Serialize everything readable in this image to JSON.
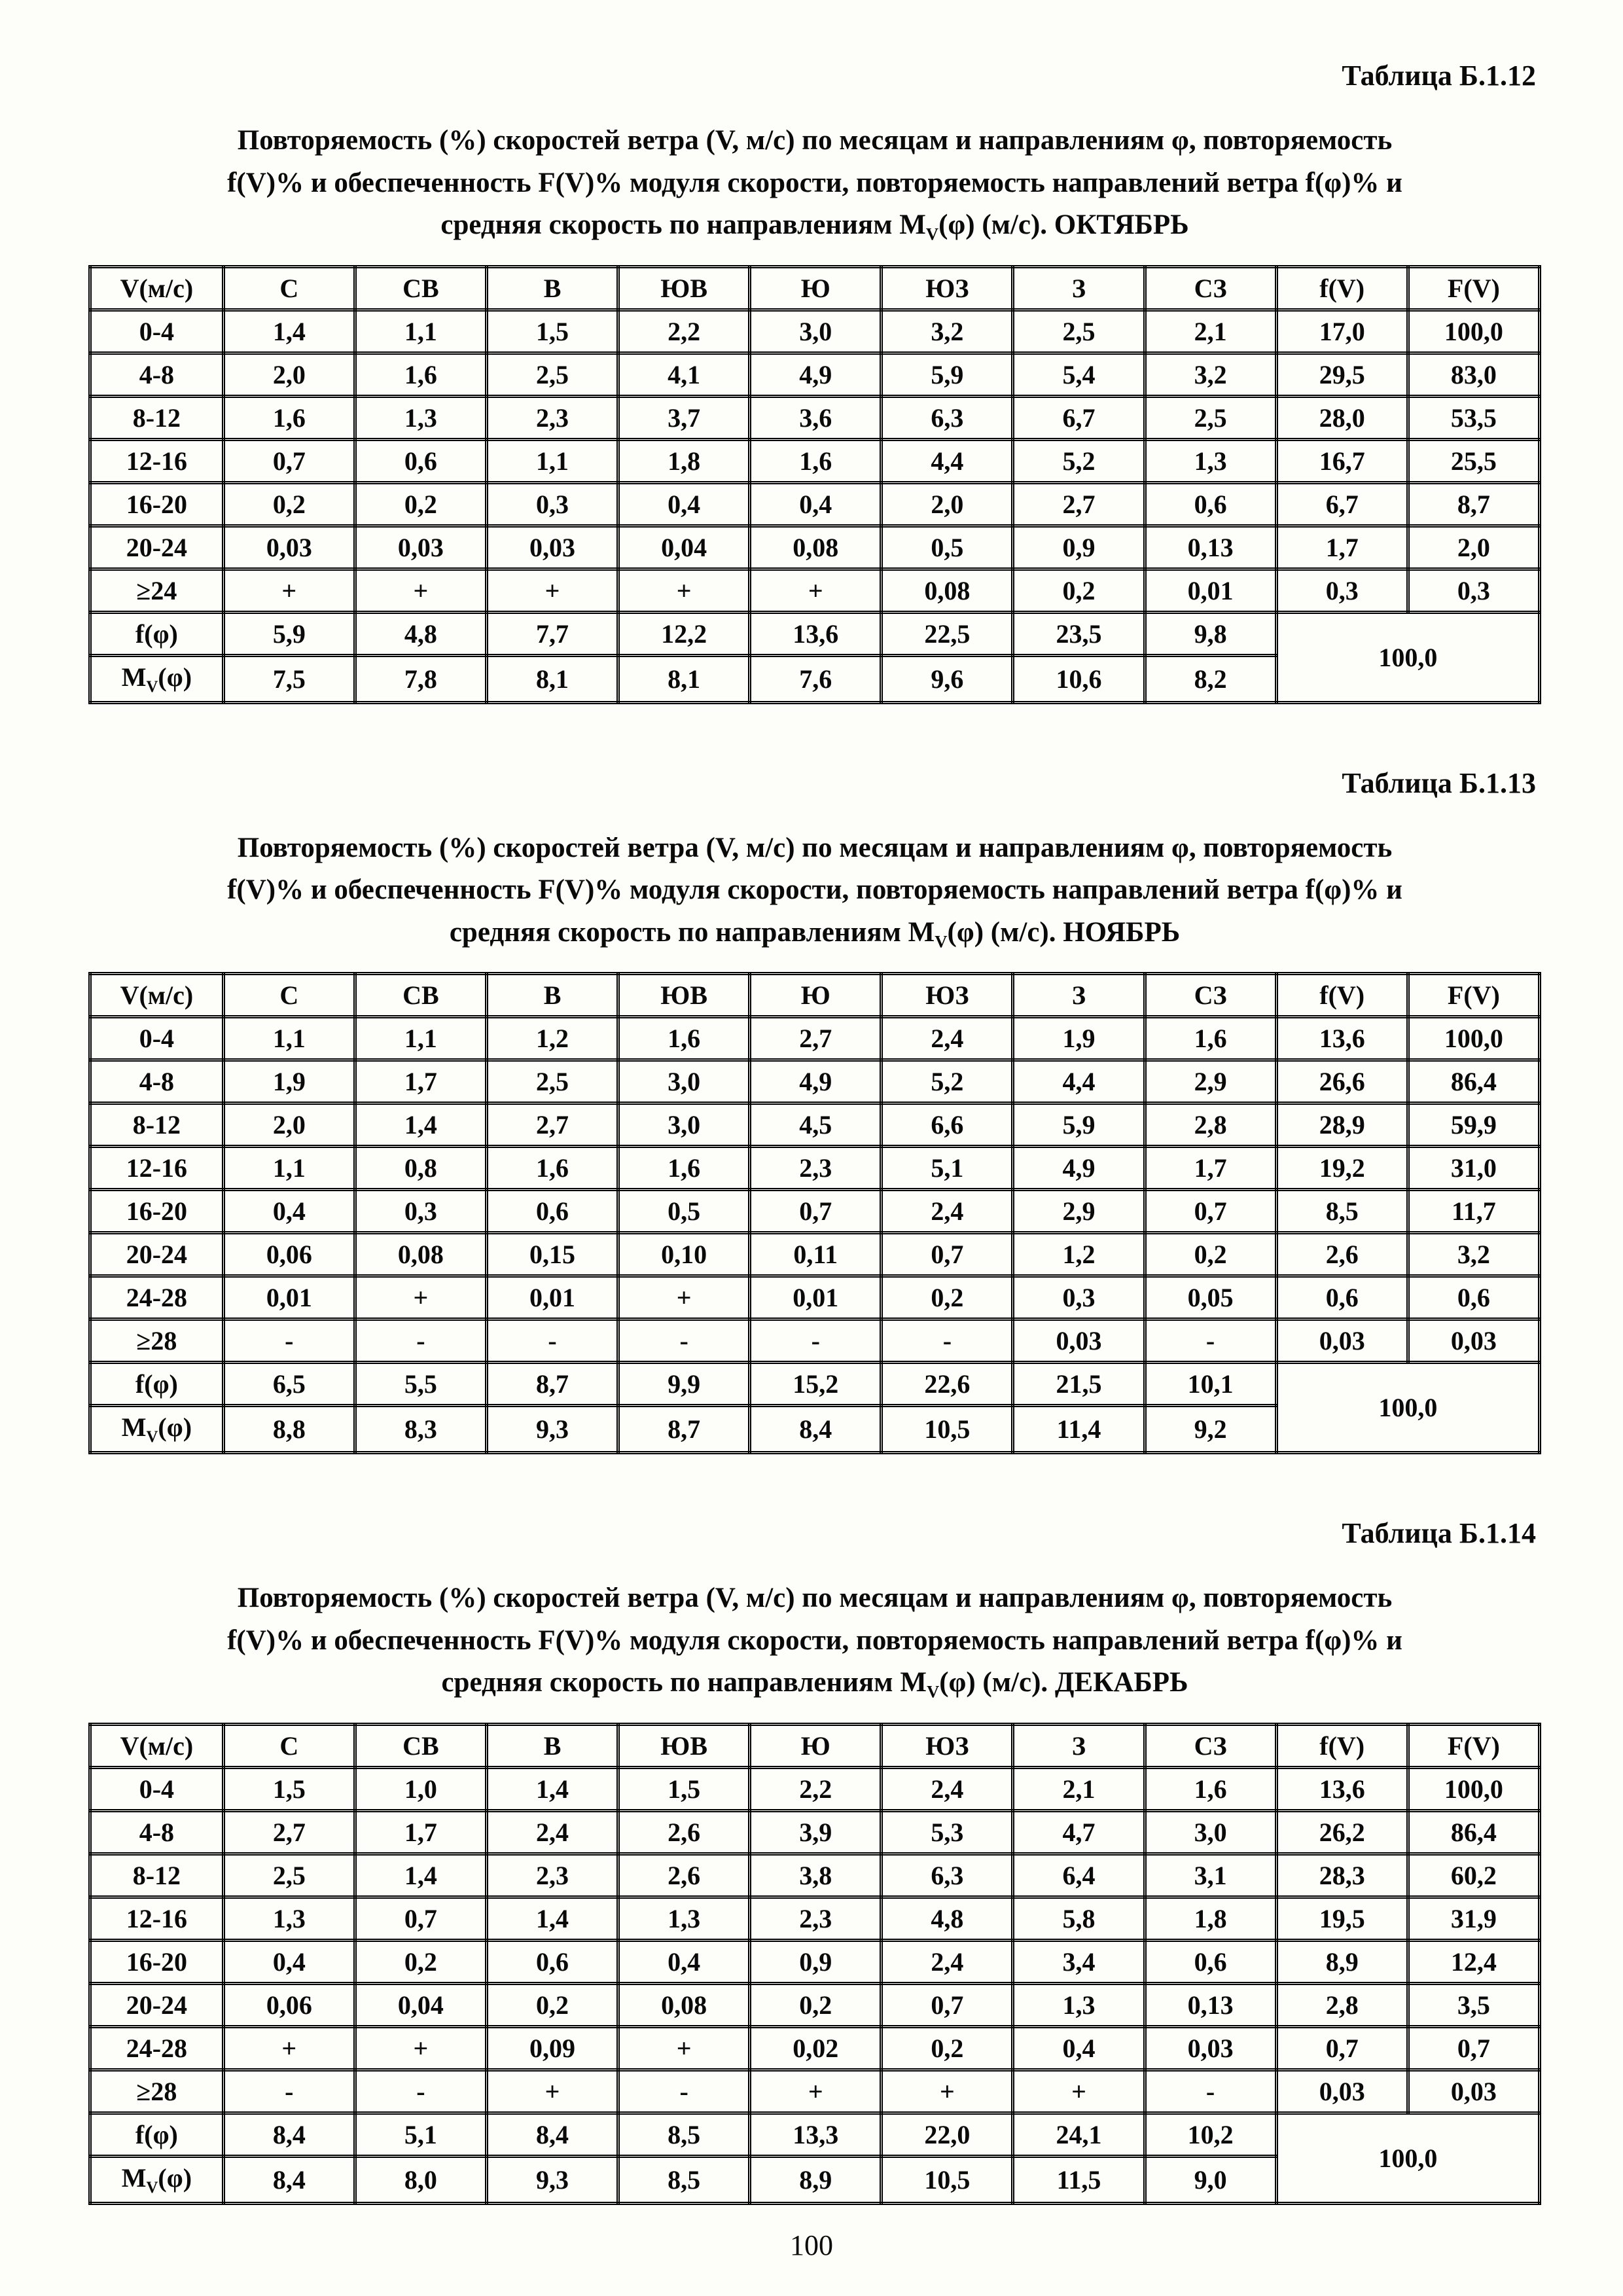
{
  "page_number": "100",
  "tables": [
    {
      "caption": "Таблица Б.1.12",
      "title": [
        "Повторяемость (%) скоростей ветра (V, м/с) по месяцам и направлениям φ, повторяемость",
        "f(V)% и обеспеченность F(V)% модуля скорости, повторяемость направлений ветра f(φ)% и",
        "средняя скорость по направлениям M_V(φ) (м/с). ОКТЯБРЬ"
      ],
      "headers": [
        "V(м/с)",
        "С",
        "СВ",
        "В",
        "ЮВ",
        "Ю",
        "ЮЗ",
        "З",
        "СЗ",
        "f(V)",
        "F(V)"
      ],
      "rows": [
        {
          "label": "0-4",
          "values": [
            "1,4",
            "1,1",
            "1,5",
            "2,2",
            "3,0",
            "3,2",
            "2,5",
            "2,1",
            "17,0",
            "100,0"
          ]
        },
        {
          "label": "4-8",
          "values": [
            "2,0",
            "1,6",
            "2,5",
            "4,1",
            "4,9",
            "5,9",
            "5,4",
            "3,2",
            "29,5",
            "83,0"
          ]
        },
        {
          "label": "8-12",
          "values": [
            "1,6",
            "1,3",
            "2,3",
            "3,7",
            "3,6",
            "6,3",
            "6,7",
            "2,5",
            "28,0",
            "53,5"
          ]
        },
        {
          "label": "12-16",
          "values": [
            "0,7",
            "0,6",
            "1,1",
            "1,8",
            "1,6",
            "4,4",
            "5,2",
            "1,3",
            "16,7",
            "25,5"
          ]
        },
        {
          "label": "16-20",
          "values": [
            "0,2",
            "0,2",
            "0,3",
            "0,4",
            "0,4",
            "2,0",
            "2,7",
            "0,6",
            "6,7",
            "8,7"
          ]
        },
        {
          "label": "20-24",
          "values": [
            "0,03",
            "0,03",
            "0,03",
            "0,04",
            "0,08",
            "0,5",
            "0,9",
            "0,13",
            "1,7",
            "2,0"
          ]
        },
        {
          "label": "≥24",
          "values": [
            "+",
            "+",
            "+",
            "+",
            "+",
            "0,08",
            "0,2",
            "0,01",
            "0,3",
            "0,3"
          ]
        }
      ],
      "summary_rows": [
        {
          "label": "f(φ)",
          "values": [
            "5,9",
            "4,8",
            "7,7",
            "12,2",
            "13,6",
            "22,5",
            "23,5",
            "9,8"
          ]
        },
        {
          "label": "M_V(φ)",
          "values": [
            "7,5",
            "7,8",
            "8,1",
            "8,1",
            "7,6",
            "9,6",
            "10,6",
            "8,2"
          ]
        }
      ],
      "summary_total": "100,0"
    },
    {
      "caption": "Таблица Б.1.13",
      "title": [
        "Повторяемость (%) скоростей ветра (V, м/с) по месяцам и направлениям φ, повторяемость",
        "f(V)% и обеспеченность F(V)% модуля скорости, повторяемость направлений ветра f(φ)% и",
        "средняя скорость по направлениям M_V(φ) (м/с). НОЯБРЬ"
      ],
      "headers": [
        "V(м/с)",
        "С",
        "СВ",
        "В",
        "ЮВ",
        "Ю",
        "ЮЗ",
        "З",
        "СЗ",
        "f(V)",
        "F(V)"
      ],
      "rows": [
        {
          "label": "0-4",
          "values": [
            "1,1",
            "1,1",
            "1,2",
            "1,6",
            "2,7",
            "2,4",
            "1,9",
            "1,6",
            "13,6",
            "100,0"
          ]
        },
        {
          "label": "4-8",
          "values": [
            "1,9",
            "1,7",
            "2,5",
            "3,0",
            "4,9",
            "5,2",
            "4,4",
            "2,9",
            "26,6",
            "86,4"
          ]
        },
        {
          "label": "8-12",
          "values": [
            "2,0",
            "1,4",
            "2,7",
            "3,0",
            "4,5",
            "6,6",
            "5,9",
            "2,8",
            "28,9",
            "59,9"
          ]
        },
        {
          "label": "12-16",
          "values": [
            "1,1",
            "0,8",
            "1,6",
            "1,6",
            "2,3",
            "5,1",
            "4,9",
            "1,7",
            "19,2",
            "31,0"
          ]
        },
        {
          "label": "16-20",
          "values": [
            "0,4",
            "0,3",
            "0,6",
            "0,5",
            "0,7",
            "2,4",
            "2,9",
            "0,7",
            "8,5",
            "11,7"
          ]
        },
        {
          "label": "20-24",
          "values": [
            "0,06",
            "0,08",
            "0,15",
            "0,10",
            "0,11",
            "0,7",
            "1,2",
            "0,2",
            "2,6",
            "3,2"
          ]
        },
        {
          "label": "24-28",
          "values": [
            "0,01",
            "+",
            "0,01",
            "+",
            "0,01",
            "0,2",
            "0,3",
            "0,05",
            "0,6",
            "0,6"
          ]
        },
        {
          "label": "≥28",
          "values": [
            "-",
            "-",
            "-",
            "-",
            "-",
            "-",
            "0,03",
            "-",
            "0,03",
            "0,03"
          ]
        }
      ],
      "summary_rows": [
        {
          "label": "f(φ)",
          "values": [
            "6,5",
            "5,5",
            "8,7",
            "9,9",
            "15,2",
            "22,6",
            "21,5",
            "10,1"
          ]
        },
        {
          "label": "M_V(φ)",
          "values": [
            "8,8",
            "8,3",
            "9,3",
            "8,7",
            "8,4",
            "10,5",
            "11,4",
            "9,2"
          ]
        }
      ],
      "summary_total": "100,0"
    },
    {
      "caption": "Таблица Б.1.14",
      "title": [
        "Повторяемость (%) скоростей ветра (V, м/с) по месяцам и направлениям φ, повторяемость",
        "f(V)% и обеспеченность F(V)% модуля скорости, повторяемость направлений ветра f(φ)% и",
        "средняя скорость по направлениям M_V(φ) (м/с). ДЕКАБРЬ"
      ],
      "headers": [
        "V(м/с)",
        "С",
        "СВ",
        "В",
        "ЮВ",
        "Ю",
        "ЮЗ",
        "З",
        "СЗ",
        "f(V)",
        "F(V)"
      ],
      "rows": [
        {
          "label": "0-4",
          "values": [
            "1,5",
            "1,0",
            "1,4",
            "1,5",
            "2,2",
            "2,4",
            "2,1",
            "1,6",
            "13,6",
            "100,0"
          ]
        },
        {
          "label": "4-8",
          "values": [
            "2,7",
            "1,7",
            "2,4",
            "2,6",
            "3,9",
            "5,3",
            "4,7",
            "3,0",
            "26,2",
            "86,4"
          ]
        },
        {
          "label": "8-12",
          "values": [
            "2,5",
            "1,4",
            "2,3",
            "2,6",
            "3,8",
            "6,3",
            "6,4",
            "3,1",
            "28,3",
            "60,2"
          ]
        },
        {
          "label": "12-16",
          "values": [
            "1,3",
            "0,7",
            "1,4",
            "1,3",
            "2,3",
            "4,8",
            "5,8",
            "1,8",
            "19,5",
            "31,9"
          ]
        },
        {
          "label": "16-20",
          "values": [
            "0,4",
            "0,2",
            "0,6",
            "0,4",
            "0,9",
            "2,4",
            "3,4",
            "0,6",
            "8,9",
            "12,4"
          ]
        },
        {
          "label": "20-24",
          "values": [
            "0,06",
            "0,04",
            "0,2",
            "0,08",
            "0,2",
            "0,7",
            "1,3",
            "0,13",
            "2,8",
            "3,5"
          ]
        },
        {
          "label": "24-28",
          "values": [
            "+",
            "+",
            "0,09",
            "+",
            "0,02",
            "0,2",
            "0,4",
            "0,03",
            "0,7",
            "0,7"
          ]
        },
        {
          "label": "≥28",
          "values": [
            "-",
            "-",
            "+",
            "-",
            "+",
            "+",
            "+",
            "-",
            "0,03",
            "0,03"
          ]
        }
      ],
      "summary_rows": [
        {
          "label": "f(φ)",
          "values": [
            "8,4",
            "5,1",
            "8,4",
            "8,5",
            "13,3",
            "22,0",
            "24,1",
            "10,2"
          ]
        },
        {
          "label": "M_V(φ)",
          "values": [
            "8,4",
            "8,0",
            "9,3",
            "8,5",
            "8,9",
            "10,5",
            "11,5",
            "9,0"
          ]
        }
      ],
      "summary_total": "100,0"
    }
  ]
}
